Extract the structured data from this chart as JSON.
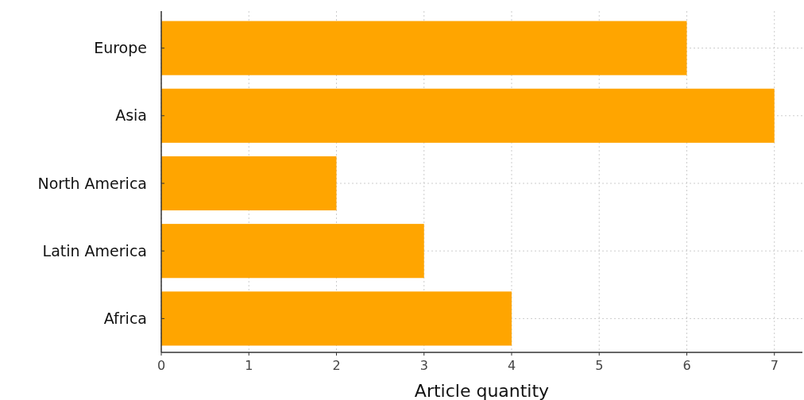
{
  "chart_data": {
    "type": "bar",
    "orientation": "horizontal",
    "xlabel": "Article quantity",
    "categories": [
      "Europe",
      "Asia",
      "North America",
      "Latin America",
      "Africa"
    ],
    "values": [
      6,
      7,
      2,
      3,
      4
    ],
    "color": "#ffa500",
    "xlim": [
      0,
      7.32
    ],
    "xticks": [
      0,
      1,
      2,
      3,
      4,
      5,
      6,
      7
    ],
    "grid": true
  }
}
